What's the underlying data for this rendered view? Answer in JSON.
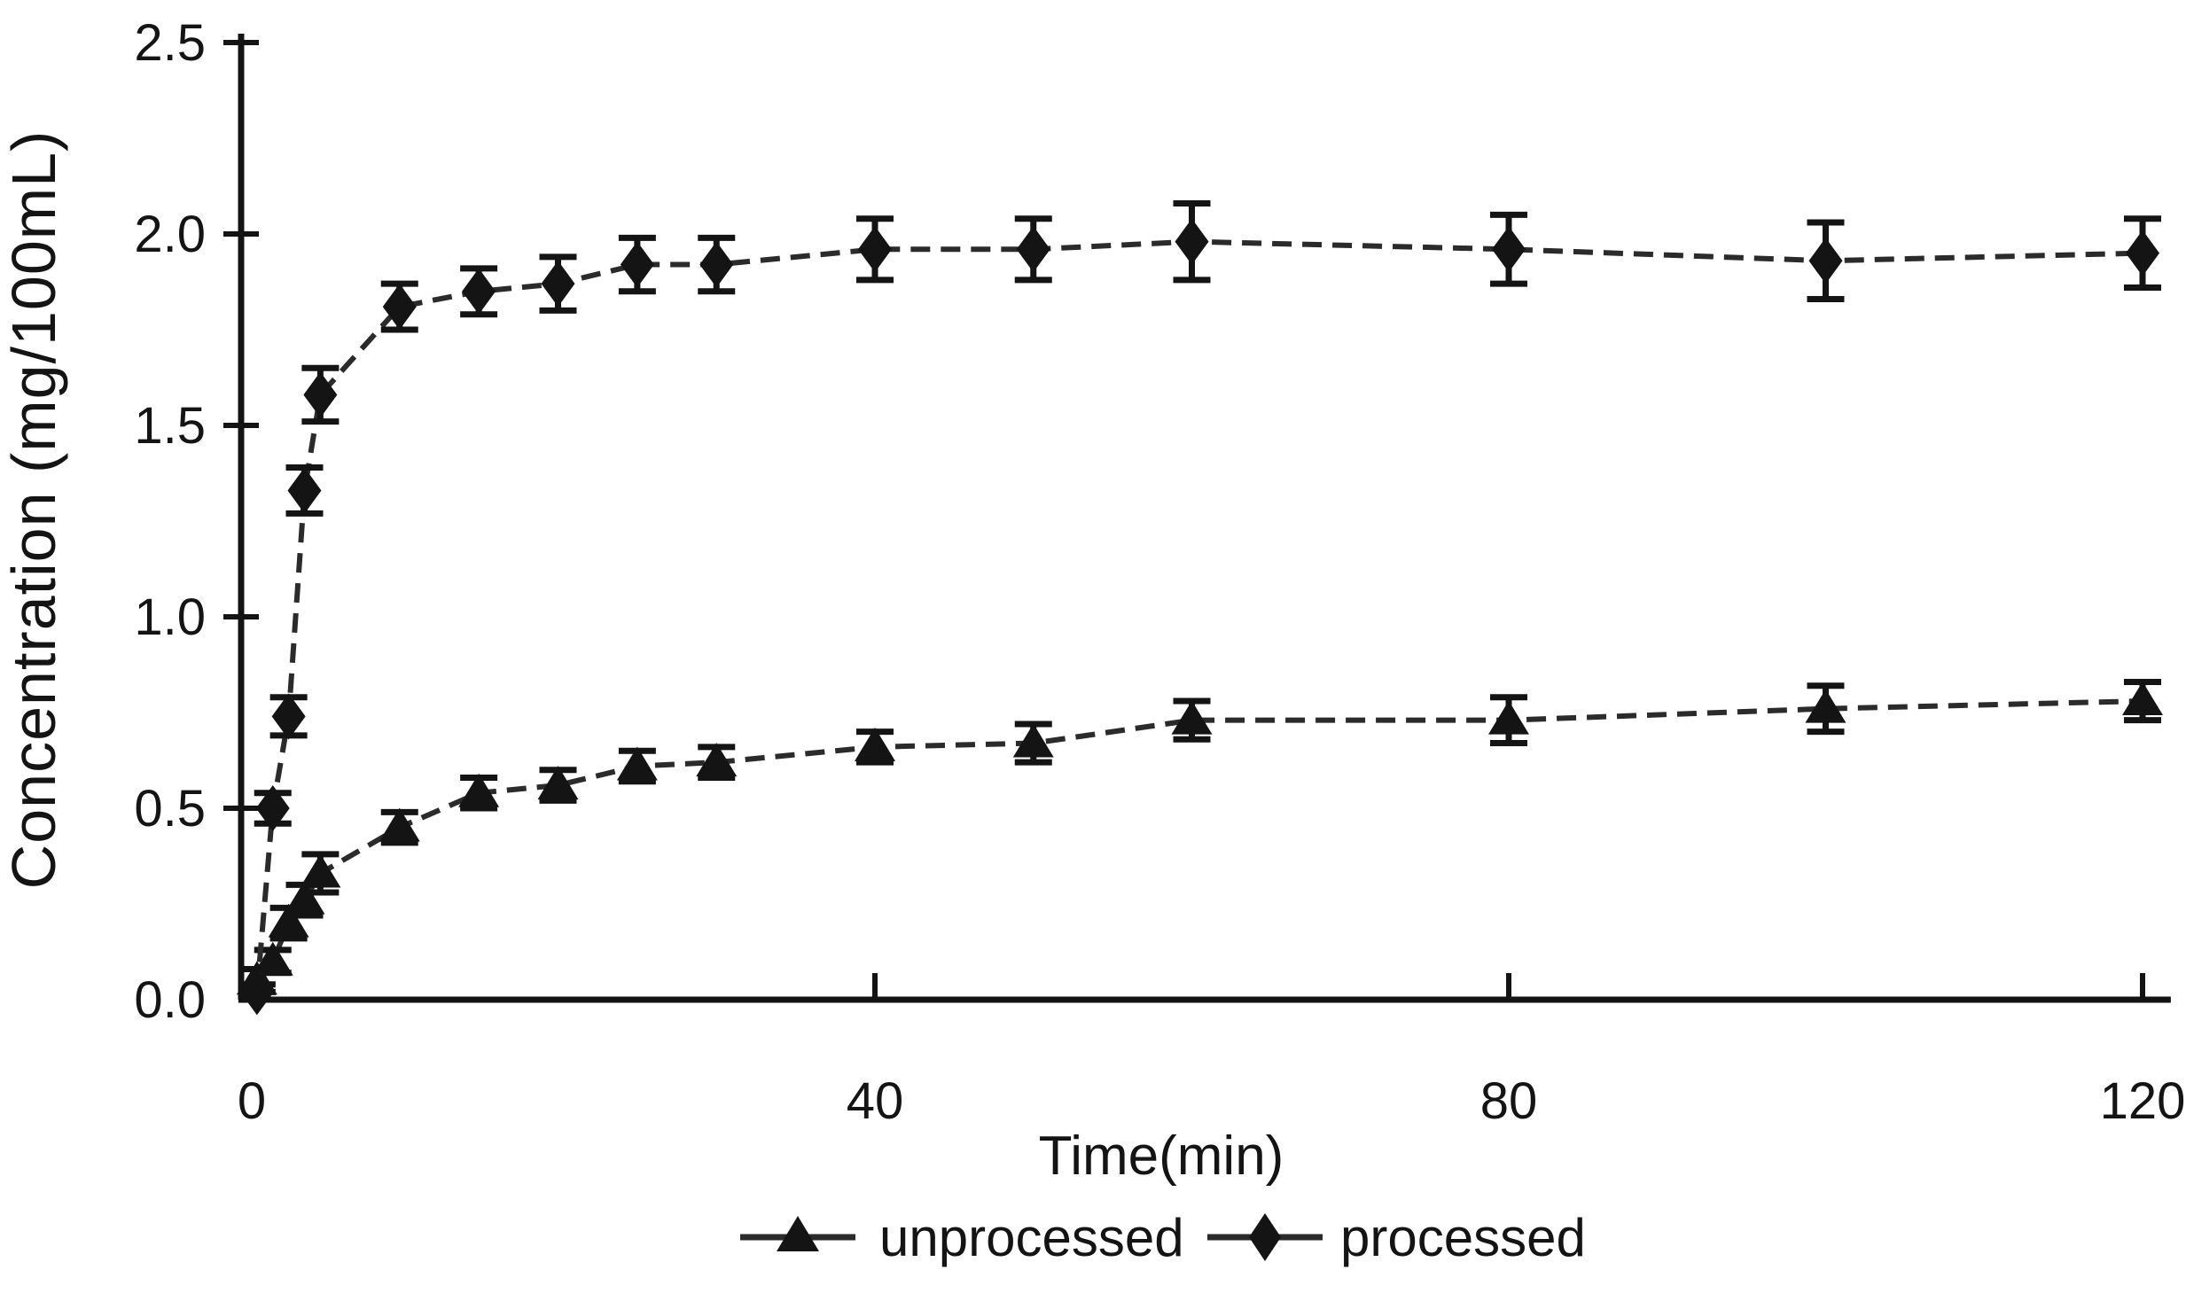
{
  "figure": {
    "background": "#ffffff",
    "ink": "#141414",
    "line_color": "#2b2b2b"
  },
  "chart_data": {
    "type": "line",
    "title": "",
    "xlabel": "Time(min)",
    "ylabel": "Concentration (mg/100mL)",
    "x_ticks": [
      0,
      40,
      80,
      120
    ],
    "y_ticks": [
      0,
      0.5,
      1,
      1.5,
      2,
      2.5
    ],
    "xlim": [
      0,
      121
    ],
    "ylim": [
      0,
      2.5
    ],
    "grid": false,
    "legend_position": "bottom-center",
    "error_bars": true,
    "x": [
      1,
      2,
      3,
      4,
      5,
      10,
      15,
      20,
      25,
      30,
      40,
      50,
      60,
      80,
      100,
      120
    ],
    "series": [
      {
        "name": "unprocessed",
        "marker": "triangle",
        "values": [
          0.05,
          0.1,
          0.2,
          0.26,
          0.33,
          0.45,
          0.54,
          0.56,
          0.61,
          0.62,
          0.66,
          0.67,
          0.73,
          0.73,
          0.76,
          0.78
        ],
        "errors": [
          0.03,
          0.03,
          0.04,
          0.04,
          0.05,
          0.04,
          0.04,
          0.04,
          0.04,
          0.04,
          0.04,
          0.05,
          0.05,
          0.06,
          0.06,
          0.05
        ]
      },
      {
        "name": "processed",
        "marker": "diamond",
        "values": [
          0.02,
          0.5,
          0.74,
          1.33,
          1.58,
          1.81,
          1.85,
          1.87,
          1.92,
          1.92,
          1.96,
          1.96,
          1.98,
          1.96,
          1.93,
          1.95
        ],
        "errors": [
          0.02,
          0.04,
          0.05,
          0.06,
          0.07,
          0.06,
          0.06,
          0.07,
          0.07,
          0.07,
          0.08,
          0.08,
          0.1,
          0.09,
          0.1,
          0.09
        ]
      }
    ]
  }
}
